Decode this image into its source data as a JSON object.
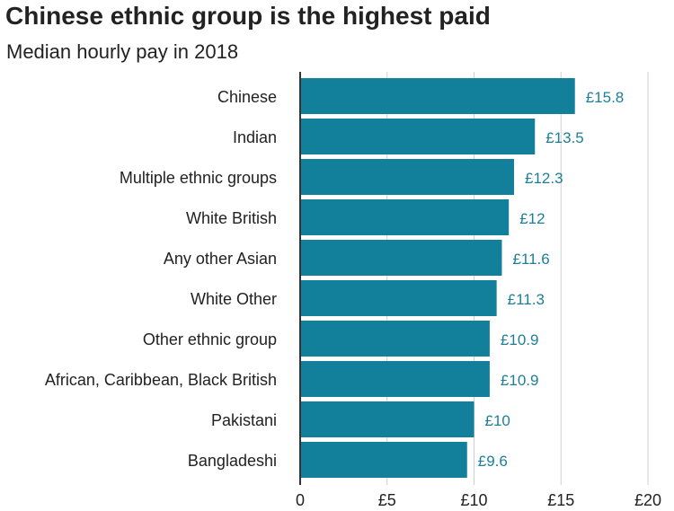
{
  "chart_data": {
    "type": "bar",
    "orientation": "horizontal",
    "title": "Chinese ethnic group is the highest paid",
    "subtitle": "Median hourly pay in 2018",
    "categories": [
      "Chinese",
      "Indian",
      "Multiple ethnic groups",
      "White British",
      "Any other Asian",
      "White Other",
      "Other ethnic group",
      "African, Caribbean, Black British",
      "Pakistani",
      "Bangladeshi"
    ],
    "values": [
      15.8,
      13.5,
      12.3,
      12,
      11.6,
      11.3,
      10.9,
      10.9,
      10,
      9.6
    ],
    "value_labels": [
      "£15.8",
      "£13.5",
      "£12.3",
      "£12",
      "£11.6",
      "£11.3",
      "£10.9",
      "£10.9",
      "£10",
      "£9.6"
    ],
    "x_ticks": [
      0,
      5,
      10,
      15,
      20
    ],
    "x_tick_labels": [
      "0",
      "£5",
      "£10",
      "£15",
      "£20"
    ],
    "xlim": [
      0,
      20
    ],
    "grid": "vertical",
    "colors": {
      "bar": "#13809b",
      "value_label": "#1d7f97",
      "grid": "#d0d0d0",
      "axis": "#333333",
      "text": "#222222"
    }
  }
}
